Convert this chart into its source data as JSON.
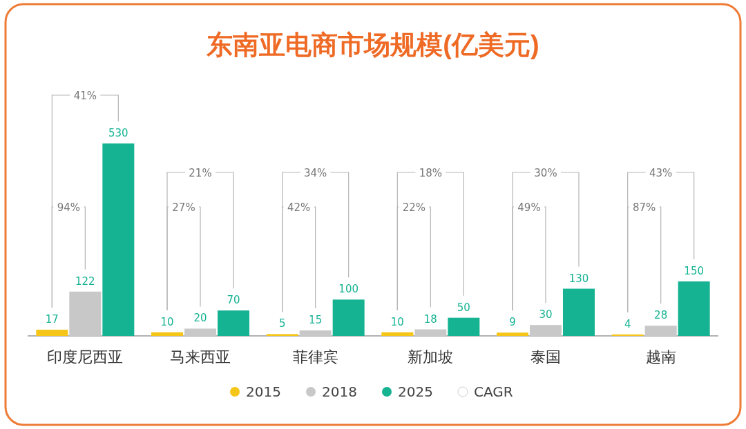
{
  "chart_data": {
    "type": "bar",
    "title": "东南亚电商市场规模(亿美元)",
    "categories": [
      "印度尼西亚",
      "马来西亚",
      "菲律宾",
      "新加坡",
      "泰国",
      "越南"
    ],
    "series": [
      {
        "name": "2015",
        "color": "#f5c518",
        "values": [
          17,
          10,
          5,
          10,
          9,
          4
        ]
      },
      {
        "name": "2018",
        "color": "#c8c8c8",
        "values": [
          122,
          20,
          15,
          18,
          30,
          28
        ]
      },
      {
        "name": "2025",
        "color": "#16b393",
        "values": [
          530,
          70,
          100,
          50,
          130,
          150
        ]
      }
    ],
    "tick_labels": "x",
    "data_labels": true,
    "legend": "bottom",
    "annotations": [
      "94%",
      "41%",
      "27%",
      "21%",
      "42%",
      "34%",
      "22%",
      "18%",
      "49%",
      "30%",
      "87%",
      "43%",
      "CAGR"
    ]
  }
}
